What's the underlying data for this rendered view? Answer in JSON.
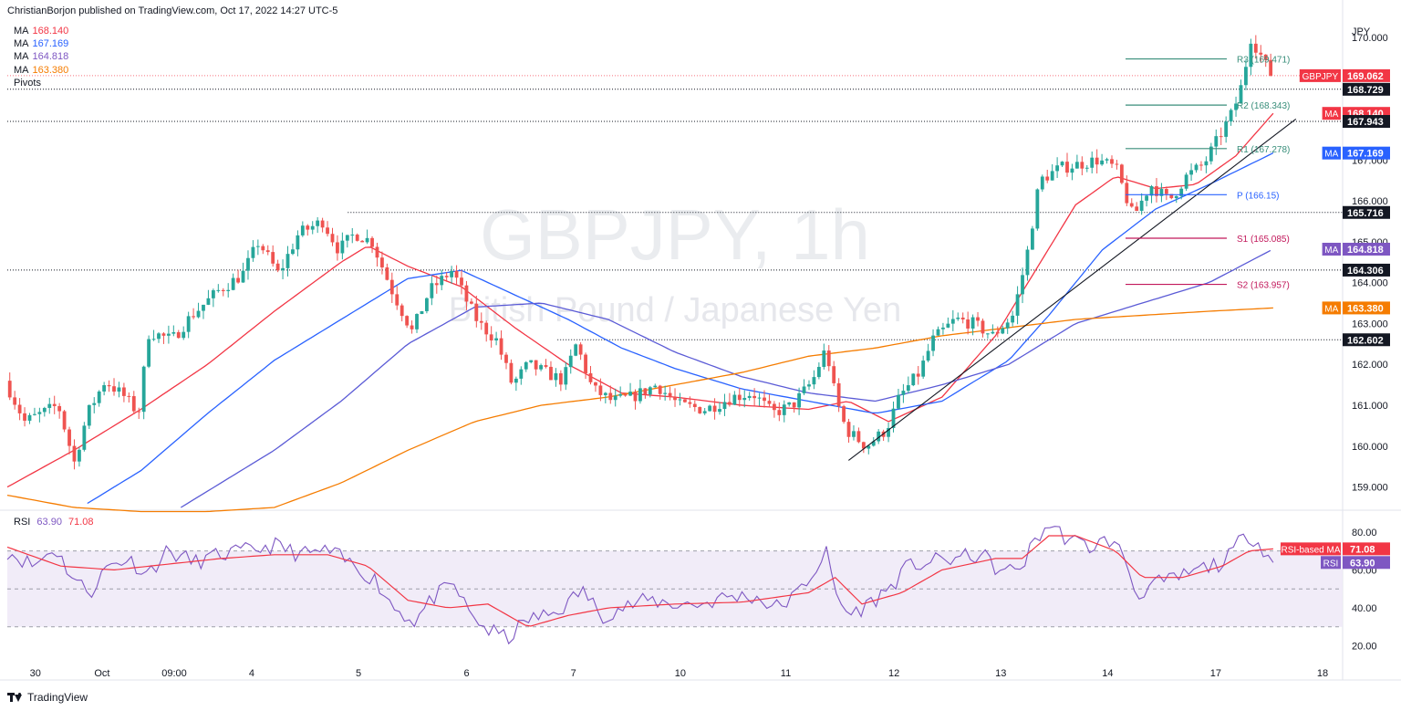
{
  "header": {
    "published_by": "ChristianBorjon published on TradingView.com, Oct 17, 2022 14:27 UTC-5"
  },
  "legend": {
    "items": [
      {
        "label": "MA",
        "value": "168.140",
        "color": "#f23645"
      },
      {
        "label": "MA",
        "value": "167.169",
        "color": "#2962ff"
      },
      {
        "label": "MA",
        "value": "164.818",
        "color": "#7e57c2"
      },
      {
        "label": "MA",
        "value": "163.380",
        "color": "#f57c00"
      }
    ],
    "pivots_label": "Pivots"
  },
  "watermark": {
    "symbol": "GBPJPY, 1h",
    "name": "British Pound / Japanese Yen"
  },
  "rsi_legend": {
    "label": "RSI",
    "value": "63.90",
    "ma_value": "71.08"
  },
  "footer": {
    "brand": "TradingView"
  },
  "colors": {
    "up": "#26a69a",
    "down": "#ef5350",
    "ma_red": "#f23645",
    "ma_blue": "#2962ff",
    "ma_purple": "#5b5bd6",
    "ma_orange": "#f57c00",
    "pivot_r": "#388e7a",
    "pivot_p": "#2962ff",
    "pivot_s": "#c2185b",
    "rsi_line": "#7e57c2",
    "rsi_ma": "#f23645",
    "rsi_band": "#ede7f6"
  },
  "chart_data": {
    "type": "candlestick",
    "symbol": "GBPJPY",
    "timeframe": "1h",
    "currency": "JPY",
    "ylim": [
      158.5,
      170.6
    ],
    "y_ticks": [
      159,
      160,
      161,
      162,
      163,
      164,
      165,
      166,
      167,
      168,
      169,
      170
    ],
    "y_tick_labels": [
      "159.000",
      "160.000",
      "161.000",
      "162.000",
      "163.000",
      "164.000",
      "165.000",
      "166.000",
      "167.000",
      "168.000",
      "169.000",
      "170.000"
    ],
    "x_tick_labels": [
      {
        "label": "30",
        "t": 0.021
      },
      {
        "label": "Oct",
        "t": 0.071
      },
      {
        "label": "09:00",
        "t": 0.125
      },
      {
        "label": "4",
        "t": 0.183
      },
      {
        "label": "5",
        "t": 0.263
      },
      {
        "label": "6",
        "t": 0.344
      },
      {
        "label": "7",
        "t": 0.424
      },
      {
        "label": "10",
        "t": 0.504
      },
      {
        "label": "11",
        "t": 0.583
      },
      {
        "label": "12",
        "t": 0.664
      },
      {
        "label": "13",
        "t": 0.744
      },
      {
        "label": "14",
        "t": 0.824
      },
      {
        "label": "17",
        "t": 0.905
      },
      {
        "label": "18",
        "t": 0.985
      }
    ],
    "price_anchors": [
      [
        0.0,
        161.6
      ],
      [
        0.015,
        160.6
      ],
      [
        0.04,
        161.0
      ],
      [
        0.052,
        159.6
      ],
      [
        0.062,
        160.8
      ],
      [
        0.075,
        161.6
      ],
      [
        0.09,
        161.2
      ],
      [
        0.1,
        160.8
      ],
      [
        0.108,
        162.8
      ],
      [
        0.125,
        162.6
      ],
      [
        0.14,
        163.2
      ],
      [
        0.16,
        163.8
      ],
      [
        0.178,
        164.2
      ],
      [
        0.19,
        165.0
      ],
      [
        0.205,
        164.2
      ],
      [
        0.22,
        165.2
      ],
      [
        0.238,
        165.5
      ],
      [
        0.25,
        164.8
      ],
      [
        0.262,
        165.2
      ],
      [
        0.275,
        165.0
      ],
      [
        0.29,
        163.8
      ],
      [
        0.305,
        162.8
      ],
      [
        0.318,
        163.8
      ],
      [
        0.335,
        164.3
      ],
      [
        0.345,
        163.6
      ],
      [
        0.355,
        163.0
      ],
      [
        0.368,
        162.6
      ],
      [
        0.38,
        161.5
      ],
      [
        0.392,
        162.0
      ],
      [
        0.405,
        161.8
      ],
      [
        0.418,
        161.6
      ],
      [
        0.428,
        162.5
      ],
      [
        0.44,
        161.4
      ],
      [
        0.455,
        161.1
      ],
      [
        0.47,
        161.2
      ],
      [
        0.488,
        161.5
      ],
      [
        0.505,
        161.0
      ],
      [
        0.525,
        160.9
      ],
      [
        0.545,
        161.2
      ],
      [
        0.56,
        161.3
      ],
      [
        0.575,
        160.8
      ],
      [
        0.59,
        161.0
      ],
      [
        0.605,
        161.6
      ],
      [
        0.615,
        162.4
      ],
      [
        0.622,
        161.2
      ],
      [
        0.63,
        160.4
      ],
      [
        0.645,
        160.0
      ],
      [
        0.66,
        160.4
      ],
      [
        0.67,
        161.2
      ],
      [
        0.685,
        161.8
      ],
      [
        0.695,
        162.6
      ],
      [
        0.712,
        163.1
      ],
      [
        0.725,
        163.0
      ],
      [
        0.74,
        162.7
      ],
      [
        0.755,
        163.2
      ],
      [
        0.765,
        164.6
      ],
      [
        0.775,
        166.5
      ],
      [
        0.79,
        166.8
      ],
      [
        0.805,
        166.9
      ],
      [
        0.818,
        167.0
      ],
      [
        0.832,
        166.8
      ],
      [
        0.845,
        165.6
      ],
      [
        0.858,
        166.4
      ],
      [
        0.872,
        166.0
      ],
      [
        0.885,
        166.6
      ],
      [
        0.898,
        166.9
      ],
      [
        0.91,
        167.6
      ],
      [
        0.92,
        168.2
      ],
      [
        0.927,
        168.9
      ],
      [
        0.933,
        170.0
      ],
      [
        0.94,
        169.6
      ],
      [
        0.948,
        169.06
      ]
    ],
    "indicators": {
      "ma": [
        {
          "name": "MA",
          "value": 168.14,
          "anchors": [
            [
              0,
              159.0
            ],
            [
              0.05,
              159.9
            ],
            [
              0.1,
              160.9
            ],
            [
              0.15,
              162.0
            ],
            [
              0.2,
              163.3
            ],
            [
              0.25,
              164.5
            ],
            [
              0.27,
              164.9
            ],
            [
              0.3,
              164.4
            ],
            [
              0.34,
              163.9
            ],
            [
              0.38,
              162.9
            ],
            [
              0.42,
              162.0
            ],
            [
              0.46,
              161.3
            ],
            [
              0.5,
              161.2
            ],
            [
              0.55,
              161.0
            ],
            [
              0.6,
              160.9
            ],
            [
              0.63,
              161.1
            ],
            [
              0.66,
              160.6
            ],
            [
              0.7,
              161.2
            ],
            [
              0.74,
              162.7
            ],
            [
              0.77,
              164.3
            ],
            [
              0.8,
              165.9
            ],
            [
              0.83,
              166.6
            ],
            [
              0.86,
              166.3
            ],
            [
              0.89,
              166.4
            ],
            [
              0.92,
              167.1
            ],
            [
              0.948,
              168.14
            ]
          ]
        },
        {
          "name": "MA",
          "value": 167.169,
          "anchors": [
            [
              0.06,
              158.6
            ],
            [
              0.1,
              159.4
            ],
            [
              0.15,
              160.8
            ],
            [
              0.2,
              162.1
            ],
            [
              0.25,
              163.1
            ],
            [
              0.3,
              164.1
            ],
            [
              0.34,
              164.3
            ],
            [
              0.38,
              163.7
            ],
            [
              0.42,
              163.1
            ],
            [
              0.46,
              162.4
            ],
            [
              0.5,
              161.9
            ],
            [
              0.55,
              161.4
            ],
            [
              0.6,
              161.1
            ],
            [
              0.65,
              160.8
            ],
            [
              0.7,
              161.1
            ],
            [
              0.75,
              162.1
            ],
            [
              0.78,
              163.2
            ],
            [
              0.82,
              164.8
            ],
            [
              0.86,
              165.8
            ],
            [
              0.9,
              166.4
            ],
            [
              0.948,
              167.17
            ]
          ]
        },
        {
          "name": "MA",
          "value": 164.818,
          "anchors": [
            [
              0.13,
              158.5
            ],
            [
              0.2,
              159.9
            ],
            [
              0.25,
              161.1
            ],
            [
              0.3,
              162.5
            ],
            [
              0.35,
              163.4
            ],
            [
              0.4,
              163.5
            ],
            [
              0.45,
              163.1
            ],
            [
              0.5,
              162.3
            ],
            [
              0.55,
              161.7
            ],
            [
              0.6,
              161.3
            ],
            [
              0.65,
              161.1
            ],
            [
              0.7,
              161.5
            ],
            [
              0.75,
              162.0
            ],
            [
              0.8,
              163.0
            ],
            [
              0.85,
              163.5
            ],
            [
              0.9,
              164.0
            ],
            [
              0.948,
              164.82
            ]
          ]
        },
        {
          "name": "MA",
          "value": 163.38,
          "anchors": [
            [
              0,
              158.8
            ],
            [
              0.05,
              158.5
            ],
            [
              0.1,
              158.4
            ],
            [
              0.15,
              158.4
            ],
            [
              0.2,
              158.5
            ],
            [
              0.25,
              159.1
            ],
            [
              0.3,
              159.9
            ],
            [
              0.35,
              160.6
            ],
            [
              0.4,
              161.0
            ],
            [
              0.45,
              161.2
            ],
            [
              0.5,
              161.5
            ],
            [
              0.55,
              161.8
            ],
            [
              0.6,
              162.2
            ],
            [
              0.65,
              162.4
            ],
            [
              0.7,
              162.7
            ],
            [
              0.75,
              162.9
            ],
            [
              0.8,
              163.1
            ],
            [
              0.85,
              163.2
            ],
            [
              0.9,
              163.3
            ],
            [
              0.948,
              163.38
            ]
          ]
        }
      ],
      "pivots": [
        {
          "label": "R3 (169.471)",
          "value": 169.471,
          "color": "#388e7a"
        },
        {
          "label": "R2 (168.343)",
          "value": 168.343,
          "color": "#388e7a"
        },
        {
          "label": "R1 (167.278)",
          "value": 167.278,
          "color": "#388e7a"
        },
        {
          "label": "P (166.15)",
          "value": 166.15,
          "color": "#2962ff"
        },
        {
          "label": "S1 (165.085)",
          "value": 165.085,
          "color": "#c2185b"
        },
        {
          "label": "S2 (163.957)",
          "value": 163.957,
          "color": "#c2185b"
        }
      ],
      "horizontal_levels": [
        {
          "value": 168.729,
          "label": "168.729",
          "start": 0.0
        },
        {
          "value": 167.943,
          "label": "167.943",
          "start": 0.0
        },
        {
          "value": 165.716,
          "label": "165.716",
          "start": 0.255
        },
        {
          "value": 164.306,
          "label": "164.306",
          "start": 0.0
        },
        {
          "value": 162.602,
          "label": "162.602",
          "start": 0.412
        }
      ],
      "trendline": [
        [
          0.63,
          159.65
        ],
        [
          0.965,
          168.0
        ]
      ],
      "price_badges": [
        {
          "tag": "GBPJPY",
          "value": "169.062",
          "y": 169.062,
          "color": "#f23645"
        },
        {
          "tag": "",
          "value": "168.729",
          "y": 168.729,
          "color": "#131722"
        },
        {
          "tag": "MA",
          "value": "168.140",
          "y": 168.14,
          "color": "#f23645"
        },
        {
          "tag": "",
          "value": "167.943",
          "y": 167.943,
          "color": "#131722"
        },
        {
          "tag": "MA",
          "value": "167.169",
          "y": 167.169,
          "color": "#2962ff"
        },
        {
          "tag": "",
          "value": "165.716",
          "y": 165.716,
          "color": "#131722"
        },
        {
          "tag": "MA",
          "value": "164.818",
          "y": 164.818,
          "color": "#7e57c2"
        },
        {
          "tag": "",
          "value": "164.306",
          "y": 164.306,
          "color": "#131722"
        },
        {
          "tag": "MA",
          "value": "163.380",
          "y": 163.38,
          "color": "#f57c00"
        },
        {
          "tag": "",
          "value": "162.602",
          "y": 162.602,
          "color": "#131722"
        }
      ]
    },
    "rsi": {
      "ylim": [
        15,
        90
      ],
      "ticks": [
        20,
        40,
        60,
        80
      ],
      "bands": [
        30,
        50,
        70
      ],
      "current": 63.9,
      "ma_current": 71.08,
      "ma_label": "RSI-based MA",
      "anchors": [
        [
          0,
          70
        ],
        [
          0.02,
          62
        ],
        [
          0.035,
          72
        ],
        [
          0.05,
          55
        ],
        [
          0.062,
          48
        ],
        [
          0.075,
          62
        ],
        [
          0.09,
          66
        ],
        [
          0.105,
          58
        ],
        [
          0.12,
          70
        ],
        [
          0.14,
          64
        ],
        [
          0.16,
          68
        ],
        [
          0.18,
          70
        ],
        [
          0.2,
          73
        ],
        [
          0.22,
          68
        ],
        [
          0.24,
          70
        ],
        [
          0.26,
          62
        ],
        [
          0.275,
          55
        ],
        [
          0.29,
          40
        ],
        [
          0.305,
          33
        ],
        [
          0.32,
          46
        ],
        [
          0.335,
          52
        ],
        [
          0.345,
          38
        ],
        [
          0.36,
          28
        ],
        [
          0.375,
          24
        ],
        [
          0.39,
          34
        ],
        [
          0.405,
          36
        ],
        [
          0.42,
          42
        ],
        [
          0.43,
          50
        ],
        [
          0.445,
          36
        ],
        [
          0.46,
          40
        ],
        [
          0.48,
          44
        ],
        [
          0.5,
          42
        ],
        [
          0.52,
          42
        ],
        [
          0.54,
          46
        ],
        [
          0.56,
          46
        ],
        [
          0.575,
          40
        ],
        [
          0.59,
          46
        ],
        [
          0.605,
          60
        ],
        [
          0.613,
          70
        ],
        [
          0.62,
          48
        ],
        [
          0.63,
          36
        ],
        [
          0.645,
          42
        ],
        [
          0.66,
          50
        ],
        [
          0.675,
          62
        ],
        [
          0.69,
          64
        ],
        [
          0.71,
          66
        ],
        [
          0.73,
          68
        ],
        [
          0.745,
          58
        ],
        [
          0.76,
          62
        ],
        [
          0.77,
          76
        ],
        [
          0.78,
          84
        ],
        [
          0.795,
          76
        ],
        [
          0.81,
          72
        ],
        [
          0.825,
          76
        ],
        [
          0.838,
          66
        ],
        [
          0.845,
          46
        ],
        [
          0.856,
          52
        ],
        [
          0.87,
          54
        ],
        [
          0.885,
          58
        ],
        [
          0.9,
          62
        ],
        [
          0.912,
          64
        ],
        [
          0.922,
          74
        ],
        [
          0.93,
          79
        ],
        [
          0.94,
          72
        ],
        [
          0.948,
          63.9
        ]
      ],
      "ma_anchors": [
        [
          0,
          72
        ],
        [
          0.04,
          62
        ],
        [
          0.08,
          60
        ],
        [
          0.12,
          63
        ],
        [
          0.16,
          66
        ],
        [
          0.2,
          68
        ],
        [
          0.24,
          68
        ],
        [
          0.27,
          62
        ],
        [
          0.3,
          44
        ],
        [
          0.33,
          40
        ],
        [
          0.36,
          42
        ],
        [
          0.39,
          30
        ],
        [
          0.42,
          36
        ],
        [
          0.45,
          40
        ],
        [
          0.5,
          42
        ],
        [
          0.55,
          43
        ],
        [
          0.6,
          48
        ],
        [
          0.62,
          56
        ],
        [
          0.64,
          42
        ],
        [
          0.67,
          48
        ],
        [
          0.7,
          60
        ],
        [
          0.74,
          66
        ],
        [
          0.76,
          66
        ],
        [
          0.78,
          78
        ],
        [
          0.8,
          78
        ],
        [
          0.83,
          70
        ],
        [
          0.85,
          56
        ],
        [
          0.88,
          56
        ],
        [
          0.91,
          62
        ],
        [
          0.93,
          70
        ],
        [
          0.948,
          71.08
        ]
      ]
    }
  }
}
